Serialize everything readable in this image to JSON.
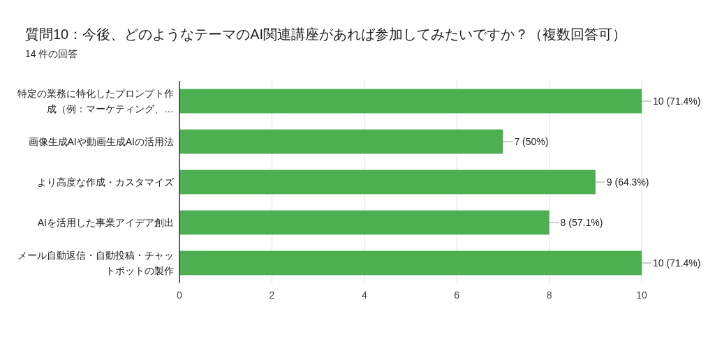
{
  "chart_data": {
    "type": "bar",
    "orientation": "horizontal",
    "title": "質問10：今後、どのようなテーマのAI関連講座があれば参加してみたいですか？（複数回答可）",
    "subtitle": "14 件の回答",
    "categories": [
      "特定の業務に特化したプロンプト作成（例：マーケティング、…",
      "画像生成AIや動画生成AIの活用法",
      "より高度な作成・カスタマイズ",
      "AIを活用した事業アイデア創出",
      "メール自動返信・自動投稿・チャットボットの製作"
    ],
    "values": [
      10,
      7,
      9,
      8,
      10
    ],
    "value_labels": [
      "10 (71.4%)",
      "7 (50%)",
      "9 (64.3%)",
      "8 (57.1%)",
      "10 (71.4%)"
    ],
    "color": "#4caf50",
    "xlim": [
      0,
      10
    ],
    "xticks": [
      0,
      2,
      4,
      6,
      8,
      10
    ],
    "grid": "x"
  }
}
